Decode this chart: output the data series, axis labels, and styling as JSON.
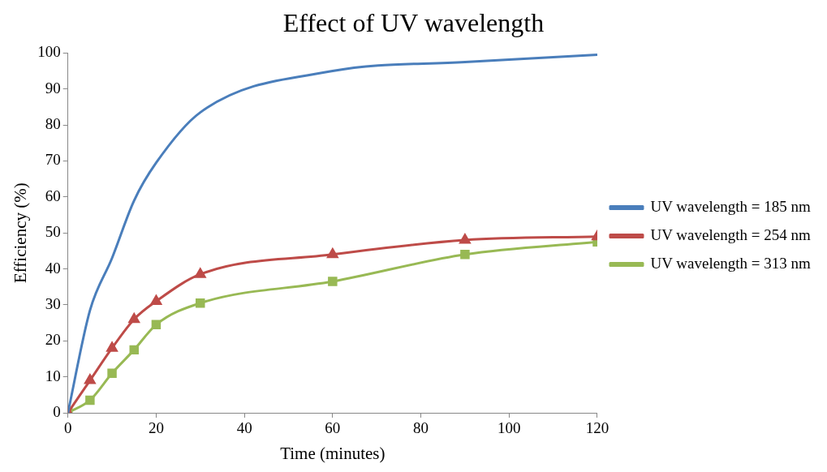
{
  "chart_data": {
    "type": "line",
    "title": "Effect of UV wavelength",
    "xlabel": "Time (minutes)",
    "ylabel": "Efficiency (%)",
    "x": [
      0,
      5,
      10,
      15,
      20,
      30,
      60,
      90,
      120
    ],
    "series": [
      {
        "name": "UV wavelength = 185 nm",
        "color": "#4a7ebb",
        "marker": "none",
        "values": [
          0,
          28.5,
          43,
          59,
          69.5,
          83.5,
          95,
          97.5,
          99.5
        ]
      },
      {
        "name": "UV wavelength = 254 nm",
        "color": "#be4b48",
        "marker": "triangle",
        "values": [
          0,
          9,
          18,
          26,
          31,
          38.5,
          44,
          48,
          49
        ]
      },
      {
        "name": "UV wavelength = 313 nm",
        "color": "#98b954",
        "marker": "square",
        "values": [
          0,
          3.5,
          11,
          17.5,
          24.5,
          30.5,
          36.5,
          44,
          47.5
        ]
      }
    ],
    "xlim": [
      0,
      120
    ],
    "xticks": [
      0,
      20,
      40,
      60,
      80,
      100,
      120
    ],
    "ylim": [
      0,
      100
    ],
    "yticks": [
      0,
      10,
      20,
      30,
      40,
      50,
      60,
      70,
      80,
      90,
      100
    ],
    "grid": false,
    "legend": "right"
  }
}
